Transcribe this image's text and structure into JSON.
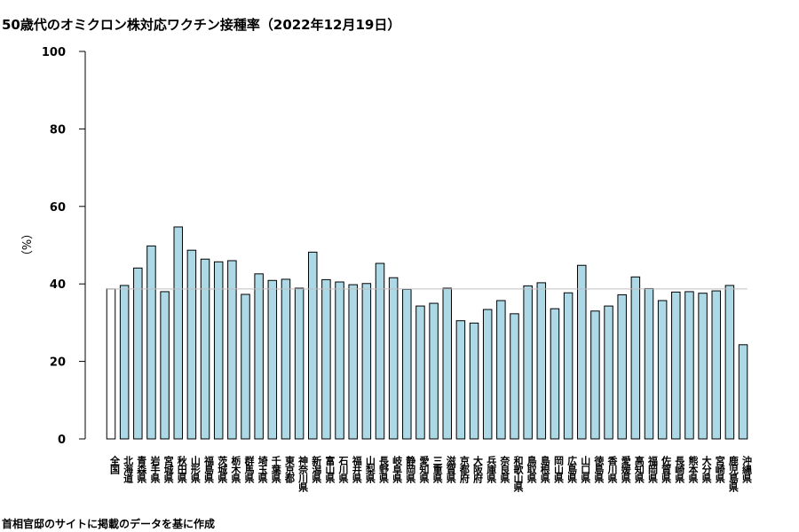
{
  "title": "50歳代のオミクロン株対応ワクチン接種率（2022年12月19日）",
  "source": "首相官邸のサイトに掲載のデータを基に作成",
  "colors": {
    "bar_fill": "#add8e6",
    "national_fill": "#ffffff",
    "reference_line": "#bfbfbf",
    "stroke": "#000000"
  },
  "chart_data": {
    "type": "bar",
    "title": "50歳代のオミクロン株対応ワクチン接種率（2022年12月19日）",
    "ylabel": "（%）",
    "ylim": [
      0,
      100
    ],
    "yticks": [
      0,
      20,
      40,
      60,
      80,
      100
    ],
    "reference_line": 38.7,
    "categories": [
      "全国",
      "北海道",
      "青森県",
      "岩手県",
      "宮城県",
      "秋田県",
      "山形県",
      "福島県",
      "茨城県",
      "栃木県",
      "群馬県",
      "埼玉県",
      "千葉県",
      "東京都",
      "神奈川県",
      "新潟県",
      "富山県",
      "石川県",
      "福井県",
      "山梨県",
      "長野県",
      "岐阜県",
      "静岡県",
      "愛知県",
      "三重県",
      "滋賀県",
      "京都府",
      "大阪府",
      "兵庫県",
      "奈良県",
      "和歌山県",
      "鳥取県",
      "島根県",
      "岡山県",
      "広島県",
      "山口県",
      "徳島県",
      "香川県",
      "愛媛県",
      "高知県",
      "福岡県",
      "佐賀県",
      "長崎県",
      "熊本県",
      "大分県",
      "宮崎県",
      "鹿児島県",
      "沖縄県"
    ],
    "values": [
      38.7,
      39.6,
      44.1,
      49.8,
      38.0,
      54.7,
      48.7,
      46.4,
      45.7,
      46.0,
      37.3,
      42.6,
      40.9,
      41.2,
      38.9,
      48.2,
      41.1,
      40.5,
      39.8,
      40.1,
      45.3,
      41.6,
      38.6,
      34.3,
      35.0,
      38.9,
      30.5,
      29.9,
      33.4,
      35.7,
      32.3,
      39.5,
      40.3,
      33.6,
      37.7,
      44.8,
      33.0,
      34.3,
      37.2,
      41.8,
      38.8,
      35.7,
      37.9,
      38.0,
      37.6,
      38.2,
      39.6,
      24.3
    ]
  }
}
